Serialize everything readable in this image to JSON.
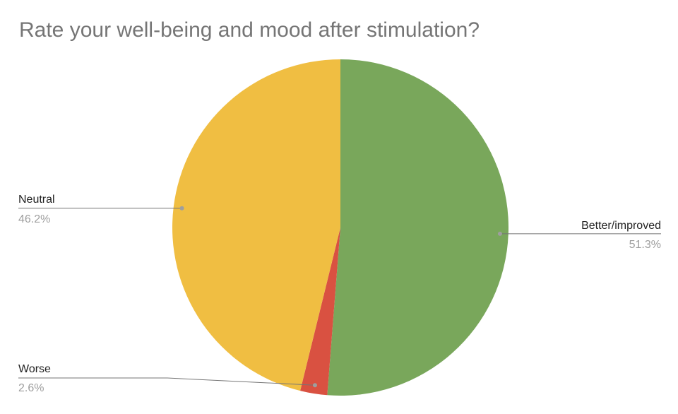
{
  "chart_data": {
    "type": "pie",
    "title": "Rate your well-being and mood after stimulation?",
    "slices": [
      {
        "label": "Better/improved",
        "value": 51.3,
        "percent_label": "51.3%",
        "color": "#79a75b"
      },
      {
        "label": "Worse",
        "value": 2.6,
        "percent_label": "2.6%",
        "color": "#d95141"
      },
      {
        "label": "Neutral",
        "value": 46.2,
        "percent_label": "46.2%",
        "color": "#f0be42"
      }
    ],
    "start_angle": "12 o'clock",
    "direction": "clockwise",
    "legend": "none (labels attached to slices with leader lines)"
  }
}
